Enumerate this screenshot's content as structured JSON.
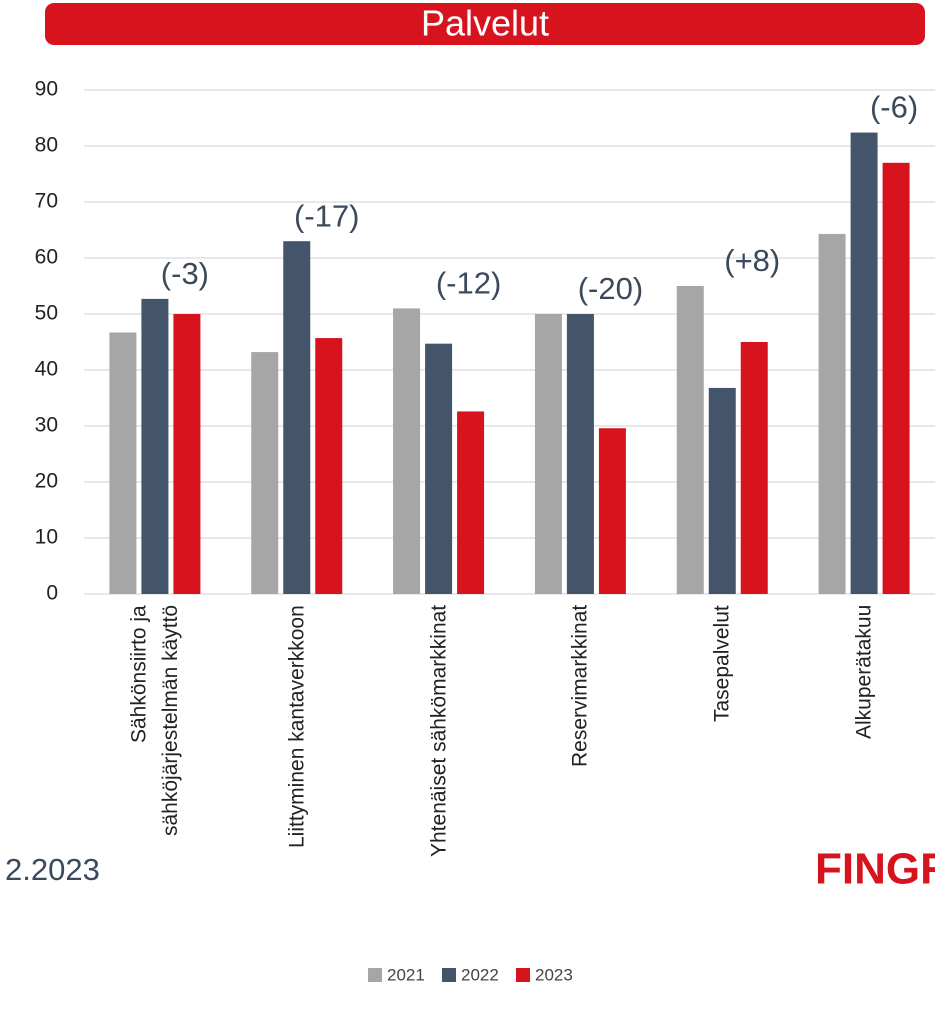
{
  "chart_data": {
    "type": "bar",
    "title": "Palvelut",
    "categories": [
      "Sähkönsiirto ja\nsähköjärjestelmän käyttö",
      "Liittyminen kantaverkkoon",
      "Yhtenäiset sähkömarkkinat",
      "Reservimarkkinat",
      "Tasepalvelut",
      "Alkuperätakuu"
    ],
    "series": [
      {
        "name": "2021",
        "color": "#a6a6a6",
        "values": [
          46.7,
          43.2,
          51,
          50,
          55,
          64.3
        ]
      },
      {
        "name": "2022",
        "color": "#44546a",
        "values": [
          52.7,
          63,
          44.7,
          50,
          36.8,
          82.4
        ]
      },
      {
        "name": "2023",
        "color": "#d7141e",
        "values": [
          50,
          45.7,
          32.6,
          29.6,
          45,
          77
        ]
      }
    ],
    "annotations": [
      "(-3)",
      "(-17)",
      "(-12)",
      "(-20)",
      "(+8)",
      "(-6)"
    ],
    "ylim": [
      0,
      90
    ],
    "yticks": [
      0,
      10,
      20,
      30,
      40,
      50,
      60,
      70,
      80,
      90
    ],
    "grid": true,
    "legend": "bottom",
    "footer_left": "2.2023",
    "logo": "FINGRID"
  }
}
